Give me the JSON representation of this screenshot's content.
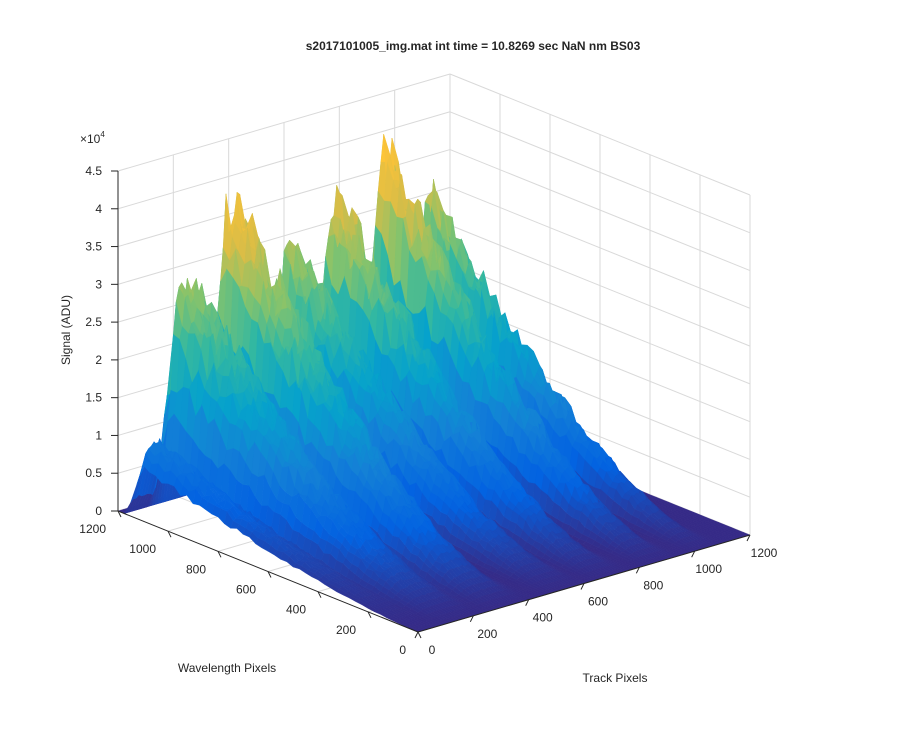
{
  "chart_data": {
    "type": "surface",
    "title": "s2017101005_img.mat int time = 10.8269 sec  NaN nm BS03",
    "xlabel": "Track Pixels",
    "ylabel": "Wavelength Pixels",
    "zlabel": "Signal (ADU)",
    "x_ticks": [
      "0",
      "200",
      "400",
      "600",
      "800",
      "1000",
      "1200"
    ],
    "y_ticks": [
      "0",
      "200",
      "400",
      "600",
      "800",
      "1000",
      "1200"
    ],
    "z_ticks": [
      "0",
      "0.5",
      "1",
      "1.5",
      "2",
      "2.5",
      "3",
      "3.5",
      "4",
      "4.5"
    ],
    "z_exponent_label": "×10",
    "z_exponent_power": "4",
    "xlim": [
      0,
      1200
    ],
    "ylim": [
      0,
      1200
    ],
    "zlim": [
      0,
      45000
    ],
    "grid": true,
    "colormap": "parula",
    "peaks": [
      {
        "x": 40,
        "width": 55,
        "height": 11000
      },
      {
        "x": 165,
        "width": 80,
        "height": 32000
      },
      {
        "x": 330,
        "width": 75,
        "height": 42000
      },
      {
        "x": 540,
        "width": 65,
        "height": 33000
      },
      {
        "x": 700,
        "width": 60,
        "height": 38000
      },
      {
        "x": 880,
        "width": 55,
        "height": 43000
      },
      {
        "x": 1040,
        "width": 45,
        "height": 35000
      }
    ],
    "wavelength_profile": {
      "peak_y": 1000,
      "falloff": "drops toward 0 at y=0"
    }
  },
  "colors": {
    "axis": "#262626",
    "grid": "#d9d9d9",
    "background": "#ffffff"
  }
}
